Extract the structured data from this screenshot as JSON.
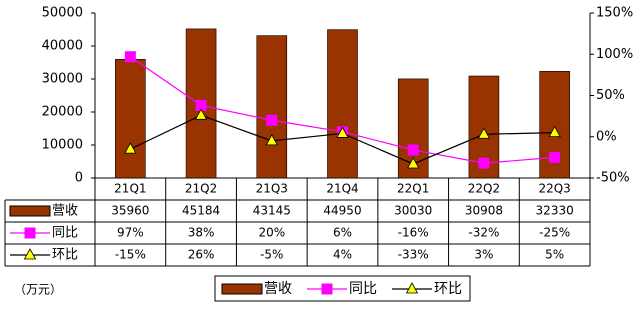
{
  "chart_data": {
    "type": "bar",
    "unit_label": "（万元）",
    "categories": [
      "21Q1",
      "21Q2",
      "21Q3",
      "21Q4",
      "22Q1",
      "22Q2",
      "22Q3"
    ],
    "series": [
      {
        "name": "营收",
        "type": "bar",
        "color": "#993300",
        "values": [
          35960,
          45184,
          43145,
          44950,
          30030,
          30908,
          32330
        ]
      },
      {
        "name": "同比",
        "type": "line",
        "axis": "y2",
        "color": "#ff00ff",
        "marker": "square",
        "marker_color": "#ff00ff",
        "values": [
          97,
          38,
          20,
          6,
          -16,
          -32,
          -25
        ],
        "value_labels": [
          "97%",
          "38%",
          "20%",
          "6%",
          "-16%",
          "-32%",
          "-25%"
        ]
      },
      {
        "name": "环比",
        "type": "line",
        "axis": "y2",
        "color": "#000000",
        "marker": "triangle",
        "marker_color": "#ffff00",
        "values": [
          -15,
          26,
          -5,
          4,
          -33,
          3,
          5
        ],
        "value_labels": [
          "-15%",
          "26%",
          "-5%",
          "4%",
          "-33%",
          "3%",
          "5%"
        ]
      }
    ],
    "ylim": [
      0,
      50000
    ],
    "yticks": [
      0,
      10000,
      20000,
      30000,
      40000,
      50000
    ],
    "y2lim": [
      -50,
      150
    ],
    "y2ticks": [
      {
        "value": -50,
        "label": "-50%"
      },
      {
        "value": 0,
        "label": "0%"
      },
      {
        "value": 50,
        "label": "50%"
      },
      {
        "value": 100,
        "label": "100%"
      },
      {
        "value": 150,
        "label": "150%"
      }
    ],
    "legend": "bottom",
    "data_table": true
  }
}
